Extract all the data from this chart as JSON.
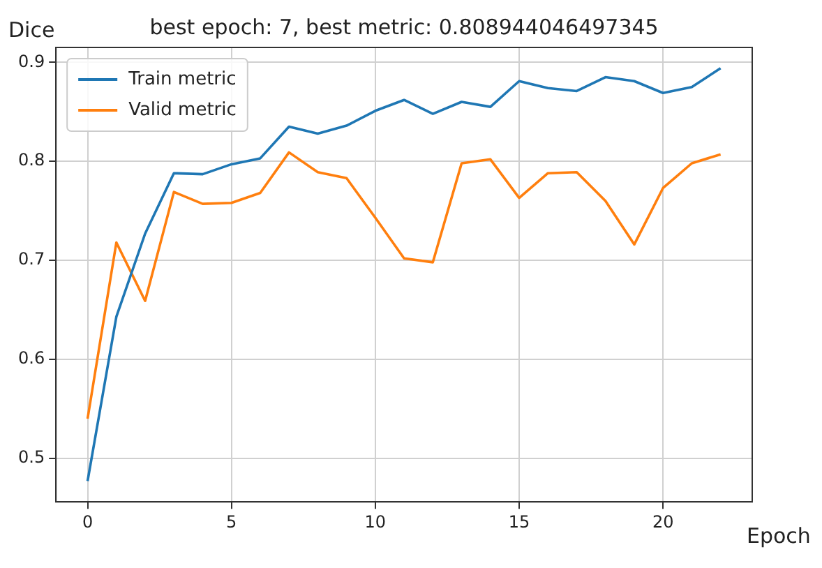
{
  "chart_data": {
    "type": "line",
    "title": "best epoch: 7, best metric: 0.808944046497345",
    "xlabel": "Epoch",
    "ylabel": "Dice",
    "x": [
      0,
      1,
      2,
      3,
      4,
      5,
      6,
      7,
      8,
      9,
      10,
      11,
      12,
      13,
      14,
      15,
      16,
      17,
      18,
      19,
      20,
      21,
      22
    ],
    "series": [
      {
        "name": "Train metric",
        "color": "#1f77b4",
        "values": [
          0.477,
          0.643,
          0.727,
          0.788,
          0.787,
          0.797,
          0.803,
          0.835,
          0.828,
          0.836,
          0.851,
          0.862,
          0.848,
          0.86,
          0.855,
          0.881,
          0.874,
          0.871,
          0.885,
          0.881,
          0.869,
          0.875,
          0.894
        ]
      },
      {
        "name": "Valid metric",
        "color": "#ff7f0e",
        "values": [
          0.54,
          0.718,
          0.659,
          0.769,
          0.757,
          0.758,
          0.768,
          0.809,
          0.789,
          0.783,
          0.743,
          0.702,
          0.698,
          0.798,
          0.802,
          0.763,
          0.788,
          0.789,
          0.76,
          0.716,
          0.773,
          0.798,
          0.807
        ]
      }
    ],
    "xlim": [
      -1.1,
      23.1
    ],
    "xticks": [
      0,
      5,
      10,
      15,
      20
    ],
    "ylim": [
      0.456,
      0.915
    ],
    "yticks": [
      0.5,
      0.6,
      0.7,
      0.8,
      0.9
    ],
    "grid": true,
    "legend": "top left"
  }
}
